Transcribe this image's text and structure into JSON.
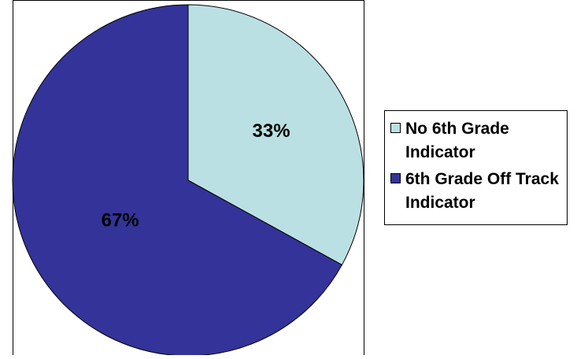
{
  "chart_data": {
    "type": "pie",
    "title": "",
    "categories": [
      "No 6th Grade Indicator",
      "6th Grade Off Track Indicator"
    ],
    "values": [
      33,
      67
    ],
    "data_labels": [
      "33%",
      "67%"
    ],
    "colors": [
      "#bbe0e3",
      "#333399"
    ],
    "legend": {
      "placement": "right",
      "entries": [
        "No 6th Grade Indicator",
        "6th Grade Off Track Indicator"
      ]
    }
  }
}
